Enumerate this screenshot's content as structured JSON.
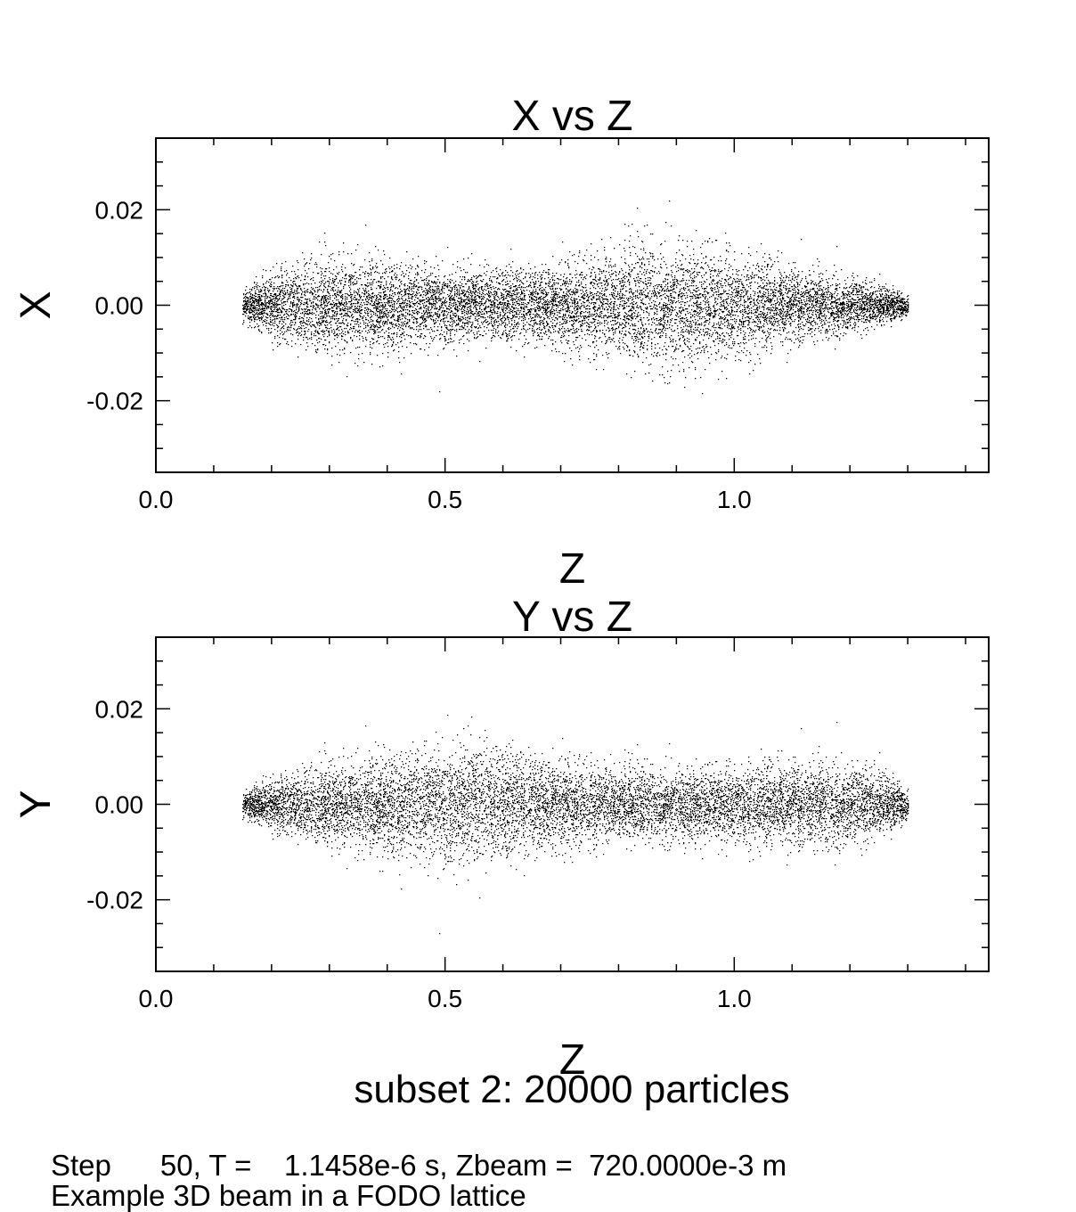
{
  "colors": {
    "background": "#ffffff",
    "foreground": "#000000"
  },
  "subset_label": "subset 2: 20000 particles",
  "footer": {
    "status": "Step      50, T =    1.1458e-6 s, Zbeam =  720.0000e-3 m",
    "description": "Example 3D beam in a FODO lattice"
  },
  "chart_data": [
    {
      "type": "scatter",
      "title": "X vs Z",
      "xlabel": "Z",
      "ylabel": "X",
      "xlim": [
        0.0,
        1.44
      ],
      "ylim": [
        -0.035,
        0.035
      ],
      "xticks": [
        {
          "value": 0.0,
          "label": "0.0"
        },
        {
          "value": 0.5,
          "label": "0.5"
        },
        {
          "value": 1.0,
          "label": "1.0"
        }
      ],
      "yticks": [
        {
          "value": 0.02,
          "label": "0.02"
        },
        {
          "value": 0.0,
          "label": "0.00"
        },
        {
          "value": -0.02,
          "label": "-0.02"
        }
      ],
      "x_minor_step": 0.1,
      "y_minor_step": 0.005,
      "particle_count": 20000,
      "envelope": [
        {
          "z": 0.15,
          "sigma": 0.0015
        },
        {
          "z": 0.25,
          "sigma": 0.0045
        },
        {
          "z": 0.35,
          "sigma": 0.0048
        },
        {
          "z": 0.45,
          "sigma": 0.004
        },
        {
          "z": 0.55,
          "sigma": 0.0034
        },
        {
          "z": 0.65,
          "sigma": 0.0036
        },
        {
          "z": 0.75,
          "sigma": 0.0047
        },
        {
          "z": 0.85,
          "sigma": 0.006
        },
        {
          "z": 0.95,
          "sigma": 0.0055
        },
        {
          "z": 1.05,
          "sigma": 0.0044
        },
        {
          "z": 1.15,
          "sigma": 0.0032
        },
        {
          "z": 1.25,
          "sigma": 0.002
        },
        {
          "z": 1.3,
          "sigma": 0.001
        }
      ]
    },
    {
      "type": "scatter",
      "title": "Y vs Z",
      "xlabel": "Z",
      "ylabel": "Y",
      "xlim": [
        0.0,
        1.44
      ],
      "ylim": [
        -0.035,
        0.035
      ],
      "xticks": [
        {
          "value": 0.0,
          "label": "0.0"
        },
        {
          "value": 0.5,
          "label": "0.5"
        },
        {
          "value": 1.0,
          "label": "1.0"
        }
      ],
      "yticks": [
        {
          "value": 0.02,
          "label": "0.02"
        },
        {
          "value": 0.0,
          "label": "0.00"
        },
        {
          "value": -0.02,
          "label": "-0.02"
        }
      ],
      "x_minor_step": 0.1,
      "y_minor_step": 0.005,
      "particle_count": 20000,
      "envelope": [
        {
          "z": 0.15,
          "sigma": 0.0012
        },
        {
          "z": 0.25,
          "sigma": 0.0035
        },
        {
          "z": 0.35,
          "sigma": 0.0045
        },
        {
          "z": 0.45,
          "sigma": 0.0055
        },
        {
          "z": 0.55,
          "sigma": 0.0058
        },
        {
          "z": 0.65,
          "sigma": 0.0048
        },
        {
          "z": 0.75,
          "sigma": 0.004
        },
        {
          "z": 0.85,
          "sigma": 0.0034
        },
        {
          "z": 0.95,
          "sigma": 0.0034
        },
        {
          "z": 1.05,
          "sigma": 0.004
        },
        {
          "z": 1.15,
          "sigma": 0.0043
        },
        {
          "z": 1.25,
          "sigma": 0.0033
        },
        {
          "z": 1.3,
          "sigma": 0.0015
        }
      ]
    }
  ]
}
